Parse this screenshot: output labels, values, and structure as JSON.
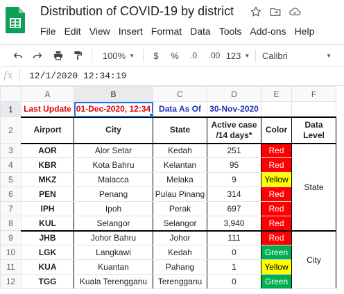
{
  "app": {
    "title": "Distribution of COVID-19 by district",
    "menu": [
      "File",
      "Edit",
      "View",
      "Insert",
      "Format",
      "Data",
      "Tools",
      "Add-ons",
      "Help"
    ]
  },
  "toolbar": {
    "zoom": "100%",
    "currency": "$",
    "percent": "%",
    "decrease_decimal": ".0",
    "increase_decimal": ".00",
    "more_formats": "123",
    "font": "Calibri"
  },
  "formula": {
    "fx": "fx",
    "value": "12/1/2020 12:34:19"
  },
  "columns": [
    "A",
    "B",
    "C",
    "D",
    "E",
    "F"
  ],
  "row1": {
    "last_update_label": "Last Update",
    "last_update_value": "01-Dec-2020, 12:34",
    "data_as_of_label": "Data As Of",
    "data_as_of_value": "30-Nov-2020"
  },
  "headers": {
    "airport": "Airport",
    "city": "City",
    "state": "State",
    "active_case": "Active case /14 days*",
    "color": "Color",
    "data_level": "Data Level"
  },
  "rows": [
    {
      "num": "3",
      "airport": "AOR",
      "city": "Alor Setar",
      "state": "Kedah",
      "cases": "251",
      "color": "Red"
    },
    {
      "num": "4",
      "airport": "KBR",
      "city": "Kota Bahru",
      "state": "Kelantan",
      "cases": "95",
      "color": "Red"
    },
    {
      "num": "5",
      "airport": "MKZ",
      "city": "Malacca",
      "state": "Melaka",
      "cases": "9",
      "color": "Yellow"
    },
    {
      "num": "6",
      "airport": "PEN",
      "city": "Penang",
      "state": "Pulau Pinang",
      "cases": "314",
      "color": "Red"
    },
    {
      "num": "7",
      "airport": "IPH",
      "city": "Ipoh",
      "state": "Perak",
      "cases": "697",
      "color": "Red"
    },
    {
      "num": "8",
      "airport": "KUL",
      "city": "Selangor",
      "state": "Selangor",
      "cases": "3,940",
      "color": "Red"
    },
    {
      "num": "9",
      "airport": "JHB",
      "city": "Johor Bahru",
      "state": "Johor",
      "cases": "111",
      "color": "Red"
    },
    {
      "num": "10",
      "airport": "LGK",
      "city": "Langkawi",
      "state": "Kedah",
      "cases": "0",
      "color": "Green"
    },
    {
      "num": "11",
      "airport": "KUA",
      "city": "Kuantan",
      "state": "Pahang",
      "cases": "1",
      "color": "Yellow"
    },
    {
      "num": "12",
      "airport": "TGG",
      "city": "Kuala Terengganu",
      "state": "Terengganu",
      "cases": "0",
      "color": "Green"
    }
  ],
  "levels": {
    "state": "State",
    "city": "City"
  },
  "icons": {
    "logo": "sheets-logo-icon",
    "star": "star-icon",
    "move": "move-to-folder-icon",
    "cloud": "cloud-saved-icon"
  }
}
